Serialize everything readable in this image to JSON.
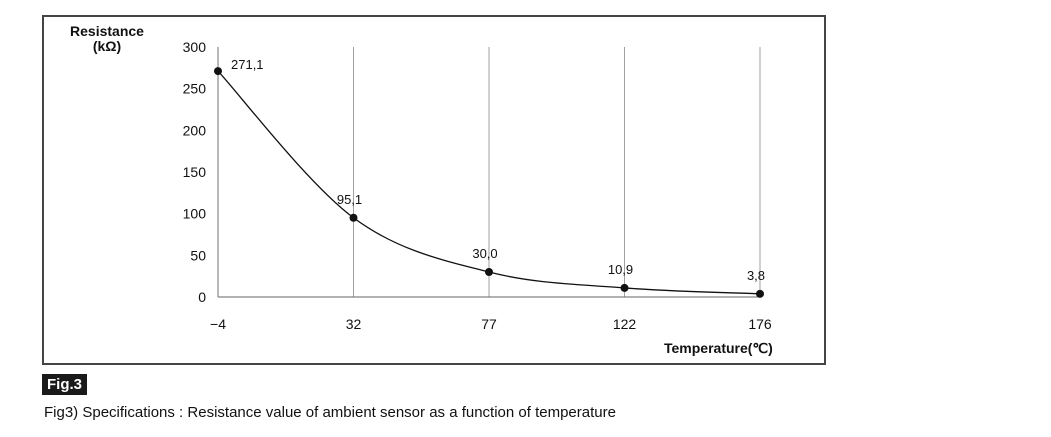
{
  "figure": {
    "badge": "Fig.3",
    "caption": "Fig3) Specifications : Resistance value of ambient sensor as a function of temperature"
  },
  "chart_data": {
    "type": "line",
    "title": "",
    "ylabel_line1": "Resistance",
    "ylabel_line2": "(kΩ)",
    "xlabel": "Temperature(℃)",
    "x": [
      -4,
      32,
      77,
      122,
      176
    ],
    "x_tick_labels": [
      "−4",
      "32",
      "77",
      "122",
      "176"
    ],
    "y_ticks": [
      0,
      50,
      100,
      150,
      200,
      250,
      300
    ],
    "ylim": [
      0,
      300
    ],
    "grid": "vertical",
    "series": [
      {
        "values": [
          271.1,
          95.1,
          30.0,
          10.9,
          3.8
        ],
        "labels": [
          "271,1",
          "95,1",
          "30,0",
          "10,9",
          "3,8"
        ]
      }
    ]
  }
}
